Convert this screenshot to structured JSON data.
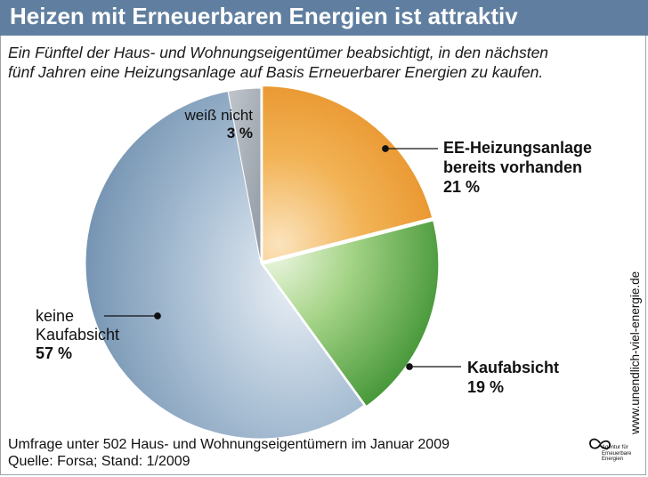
{
  "header": {
    "title": "Heizen mit Erneuerbaren Energien ist attraktiv",
    "subtitle_line1": "Ein Fünftel der Haus- und Wohnungseigentümer beabsichtigt, in den nächsten",
    "subtitle_line2": "fünf Jahren eine Heizungsanlage auf Basis Erneuerbarer Energien zu kaufen."
  },
  "chart_data": {
    "type": "pie",
    "slices": [
      {
        "name_lines": [
          "EE-Heizungsanlage",
          "bereits vorhanden"
        ],
        "value_label": "21 %",
        "value": 21,
        "color": "#eb9a2f",
        "exploded": true
      },
      {
        "name_lines": [
          "Kaufabsicht"
        ],
        "value_label": "19 %",
        "value": 19,
        "color": "#4e9a3a",
        "exploded": true
      },
      {
        "name_lines": [
          "keine",
          "Kaufabsicht"
        ],
        "value_label": "57 %",
        "value": 57,
        "color": "#7d9bb8",
        "exploded": false
      },
      {
        "name_lines": [
          "weiß nicht"
        ],
        "value_label": "3 %",
        "value": 3,
        "color": "#a5acb4",
        "exploded": false
      }
    ]
  },
  "footer": {
    "line1": "Umfrage unter 502 Haus- und Wohnungseigentümern im Januar 2009",
    "line2": "Quelle: Forsa; Stand: 1/2009"
  },
  "branding": {
    "url": "www.unendlich-viel-energie.de",
    "logo_line1": "Agentur für",
    "logo_line2": "Erneuerbare",
    "logo_line3": "Energien",
    "logo_icon": "infinity-logo-icon"
  }
}
